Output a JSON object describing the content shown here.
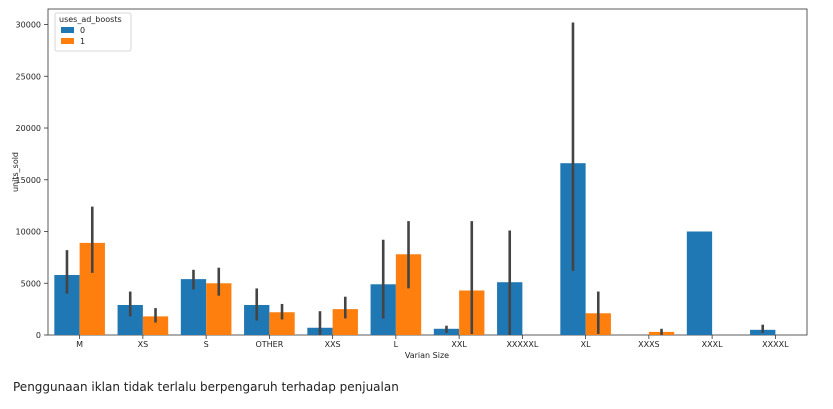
{
  "chart_data": {
    "type": "bar",
    "xlabel": "Varian Size",
    "ylabel": "units_sold",
    "ylim": [
      0,
      31500
    ],
    "yticks": [
      0,
      5000,
      10000,
      15000,
      20000,
      25000,
      30000
    ],
    "legend": {
      "title": "uses_ad_boosts",
      "placement": "top-left"
    },
    "categories": [
      "M",
      "XS",
      "S",
      "OTHER",
      "XXS",
      "L",
      "XXL",
      "XXXXXL",
      "XL",
      "XXXS",
      "XXXL",
      "XXXXL"
    ],
    "series": [
      {
        "name": "0",
        "color": "#1f77b4",
        "values": [
          5800,
          2900,
          5400,
          2900,
          700,
          4900,
          600,
          5100,
          16600,
          null,
          10000,
          500
        ],
        "ci": [
          [
            4000,
            8200
          ],
          [
            1800,
            4200
          ],
          [
            4400,
            6300
          ],
          [
            1400,
            4500
          ],
          [
            0,
            2300
          ],
          [
            1600,
            9200
          ],
          [
            200,
            900
          ],
          [
            0,
            10100
          ],
          [
            6200,
            30200
          ],
          null,
          [
            10000,
            10000
          ],
          [
            200,
            1000
          ]
        ]
      },
      {
        "name": "1",
        "color": "#ff7f0e",
        "values": [
          8900,
          1800,
          5000,
          2200,
          2500,
          7800,
          4300,
          null,
          2100,
          300,
          null,
          null
        ],
        "ci": [
          [
            6000,
            12400
          ],
          [
            1200,
            2600
          ],
          [
            3800,
            6500
          ],
          [
            1500,
            3000
          ],
          [
            1600,
            3700
          ],
          [
            4500,
            11000
          ],
          [
            100,
            11000
          ],
          null,
          [
            100,
            4200
          ],
          [
            0,
            600
          ],
          null,
          null
        ]
      }
    ],
    "errorbar_color": "#444444"
  },
  "caption": "Penggunaan iklan tidak terlalu berpengaruh terhadap penjualan"
}
